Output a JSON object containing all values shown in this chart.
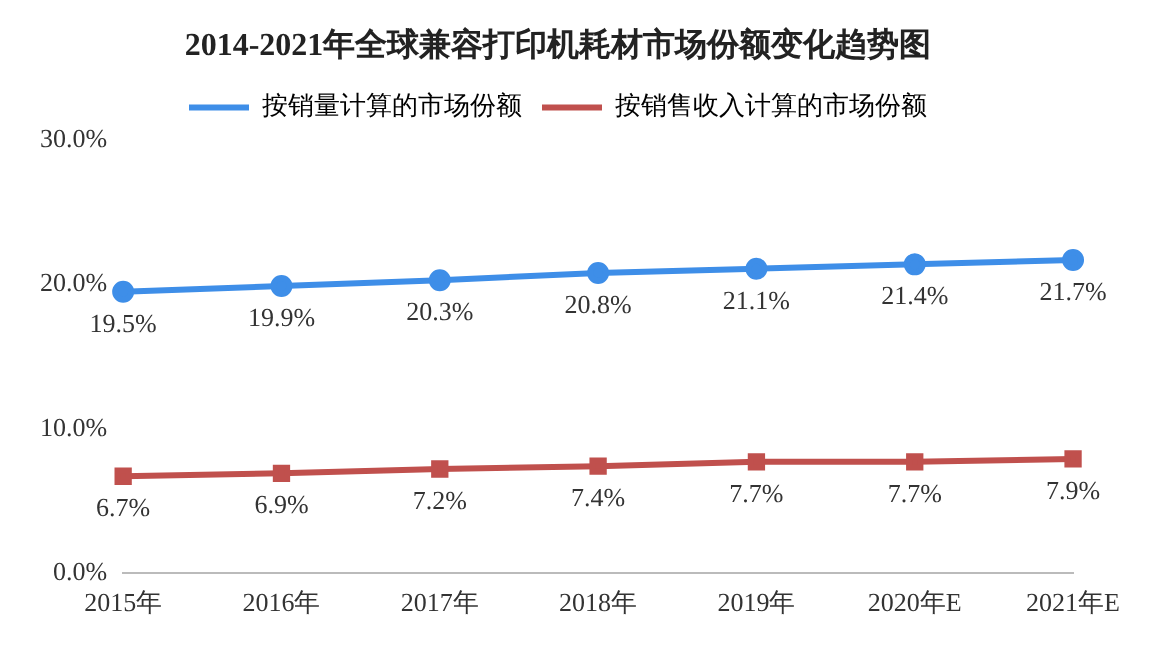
{
  "chart_data": {
    "type": "line",
    "title": "2014-2021年全球兼容打印机耗材市场份额变化趋势图",
    "categories": [
      "2015年",
      "2016年",
      "2017年",
      "2018年",
      "2019年",
      "2020年E",
      "2021年E"
    ],
    "series": [
      {
        "name": "按销量计算的市场份额",
        "color": "#3e8ee8",
        "marker": "circle",
        "values": [
          19.5,
          19.9,
          20.3,
          20.8,
          21.1,
          21.4,
          21.7
        ],
        "value_labels": [
          "19.5%",
          "19.9%",
          "20.3%",
          "20.8%",
          "21.1%",
          "21.4%",
          "21.7%"
        ]
      },
      {
        "name": "按销售收入计算的市场份额",
        "color": "#c0504d",
        "marker": "square",
        "values": [
          6.7,
          6.9,
          7.2,
          7.4,
          7.7,
          7.7,
          7.9
        ],
        "value_labels": [
          "6.7%",
          "6.9%",
          "7.2%",
          "7.4%",
          "7.7%",
          "7.7%",
          "7.9%"
        ]
      }
    ],
    "ylim": [
      0,
      30
    ],
    "yticks": [
      {
        "value": 0,
        "label": "0.0%"
      },
      {
        "value": 10,
        "label": "10.0%"
      },
      {
        "value": 20,
        "label": "20.0%"
      },
      {
        "value": 30,
        "label": "30.0%"
      }
    ],
    "grid": false,
    "legend": "top",
    "line_style": "solid"
  }
}
